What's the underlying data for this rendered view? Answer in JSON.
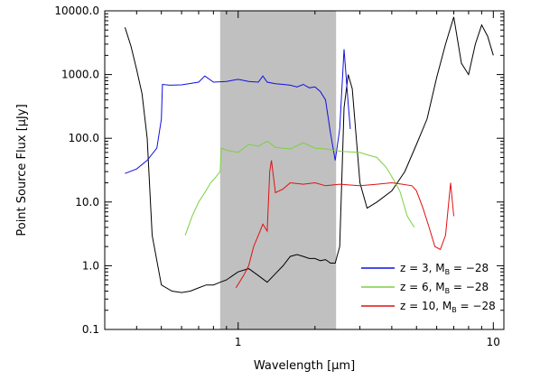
{
  "chart_data": {
    "type": "line",
    "title": "",
    "xlabel": "Wavelength [μm]",
    "ylabel": "Point Source Flux [μJy]",
    "xscale": "log",
    "yscale": "log",
    "xlim": [
      0.3,
      11
    ],
    "ylim": [
      0.1,
      10000
    ],
    "x_ticks": [
      {
        "value": 1,
        "label": "1"
      },
      {
        "value": 10,
        "label": "10"
      }
    ],
    "y_ticks": [
      {
        "value": 0.1,
        "label": "0.1"
      },
      {
        "value": 1,
        "label": "1.0"
      },
      {
        "value": 10,
        "label": "10.0"
      },
      {
        "value": 100,
        "label": "100.0"
      },
      {
        "value": 1000,
        "label": "1000.0"
      },
      {
        "value": 10000,
        "label": "10000.0"
      }
    ],
    "shaded_band": {
      "x_start": 0.85,
      "x_end": 2.42,
      "color": "#c0c0c0"
    },
    "legend_position": "bottom-right",
    "series": [
      {
        "name": "z = 3, M_B = -28",
        "legend_main": "z = 3, M",
        "legend_sub": "B",
        "legend_tail": " = −28",
        "color": "#1010e0",
        "x": [
          0.36,
          0.4,
          0.44,
          0.48,
          0.5,
          0.505,
          0.54,
          0.6,
          0.7,
          0.74,
          0.8,
          0.9,
          1.0,
          1.1,
          1.2,
          1.25,
          1.3,
          1.4,
          1.5,
          1.6,
          1.7,
          1.8,
          1.9,
          2.0,
          2.1,
          2.2,
          2.3,
          2.4,
          2.5,
          2.6,
          2.7,
          2.75
        ],
        "y": [
          28,
          33,
          45,
          70,
          200,
          700,
          680,
          690,
          760,
          950,
          760,
          780,
          840,
          780,
          760,
          950,
          760,
          720,
          700,
          680,
          640,
          700,
          620,
          640,
          540,
          400,
          120,
          45,
          140,
          2500,
          350,
          140
        ]
      },
      {
        "name": "z = 6, M_B = -28",
        "legend_main": "z = 6, M",
        "legend_sub": "B",
        "legend_tail": " = −28",
        "color": "#7cd040",
        "x": [
          0.62,
          0.66,
          0.7,
          0.74,
          0.78,
          0.82,
          0.85,
          0.86,
          0.9,
          1.0,
          1.1,
          1.2,
          1.3,
          1.4,
          1.6,
          1.8,
          2.0,
          2.2,
          2.4,
          2.6,
          3.0,
          3.2,
          3.5,
          3.8,
          4.0,
          4.3,
          4.6,
          4.9
        ],
        "y": [
          3,
          6,
          10,
          14,
          20,
          25,
          30,
          70,
          65,
          60,
          80,
          75,
          90,
          72,
          68,
          85,
          70,
          68,
          64,
          62,
          60,
          55,
          50,
          35,
          25,
          15,
          6,
          4
        ]
      },
      {
        "name": "z = 10, M_B = -28",
        "legend_main": "z = 10, M",
        "legend_sub": "B",
        "legend_tail": " = −28",
        "color": "#e01010",
        "x": [
          0.98,
          1.05,
          1.1,
          1.15,
          1.2,
          1.25,
          1.3,
          1.33,
          1.35,
          1.4,
          1.5,
          1.6,
          1.8,
          2.0,
          2.2,
          2.5,
          3.0,
          3.5,
          4.0,
          4.4,
          4.8,
          5.0,
          5.3,
          5.6,
          5.9,
          6.2,
          6.5,
          6.8,
          7.0
        ],
        "y": [
          0.45,
          0.7,
          1.0,
          2.0,
          3.0,
          4.5,
          3.5,
          30,
          45,
          14,
          16,
          20,
          19,
          20,
          18,
          19,
          18,
          19,
          20,
          19,
          18,
          15,
          8,
          4,
          2,
          1.8,
          3,
          20,
          6
        ]
      },
      {
        "name": "",
        "color": "#000000",
        "x": [
          0.36,
          0.38,
          0.4,
          0.42,
          0.44,
          0.46,
          0.5,
          0.55,
          0.6,
          0.65,
          0.7,
          0.75,
          0.8,
          0.85,
          0.9,
          1.0,
          1.1,
          1.2,
          1.3,
          1.4,
          1.5,
          1.6,
          1.7,
          1.8,
          1.9,
          2.0,
          2.1,
          2.2,
          2.3,
          2.4,
          2.5,
          2.6,
          2.7,
          2.8,
          3.0,
          3.2,
          3.5,
          4.0,
          4.5,
          5.0,
          5.5,
          6.0,
          6.5,
          7.0,
          7.5,
          8.0,
          8.5,
          9.0,
          9.5,
          10.0
        ],
        "y": [
          5500,
          2800,
          1200,
          500,
          100,
          3,
          0.5,
          0.4,
          0.38,
          0.4,
          0.45,
          0.5,
          0.5,
          0.55,
          0.6,
          0.8,
          0.9,
          0.7,
          0.55,
          0.75,
          1.0,
          1.4,
          1.5,
          1.4,
          1.3,
          1.3,
          1.2,
          1.25,
          1.1,
          1.1,
          2.0,
          300,
          1000,
          600,
          20,
          8,
          10,
          15,
          30,
          80,
          200,
          900,
          3000,
          8000,
          1500,
          1000,
          3000,
          6000,
          4000,
          2000
        ]
      }
    ]
  }
}
